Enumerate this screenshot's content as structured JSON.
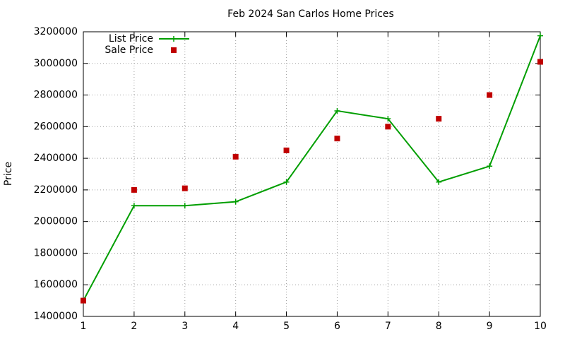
{
  "chart_data": {
    "type": "line",
    "title": "Feb 2024 San Carlos Home Prices",
    "y_label": "Price",
    "x": [
      1,
      2,
      3,
      4,
      5,
      6,
      7,
      8,
      9,
      10
    ],
    "series": [
      {
        "name": "List Price",
        "color": "#009e00",
        "mode": "lines+markers",
        "values": [
          1500000,
          2100000,
          2100000,
          2125000,
          2250000,
          2700000,
          2650000,
          2250000,
          2350000,
          3175000
        ]
      },
      {
        "name": "Sale Price",
        "color": "#c00000",
        "mode": "markers",
        "values": [
          1500000,
          2200000,
          2210000,
          2410000,
          2450000,
          2525000,
          2600000,
          2650000,
          2800000,
          3010000
        ]
      }
    ],
    "xlim": [
      1,
      10
    ],
    "xticks": [
      1,
      2,
      3,
      4,
      5,
      6,
      7,
      8,
      9,
      10
    ],
    "ylim": [
      1400000,
      3200000
    ],
    "yticks": [
      1400000,
      1600000,
      1800000,
      2000000,
      2200000,
      2400000,
      2600000,
      2800000,
      3000000,
      3200000
    ],
    "grid": true,
    "legend": "top-left"
  }
}
